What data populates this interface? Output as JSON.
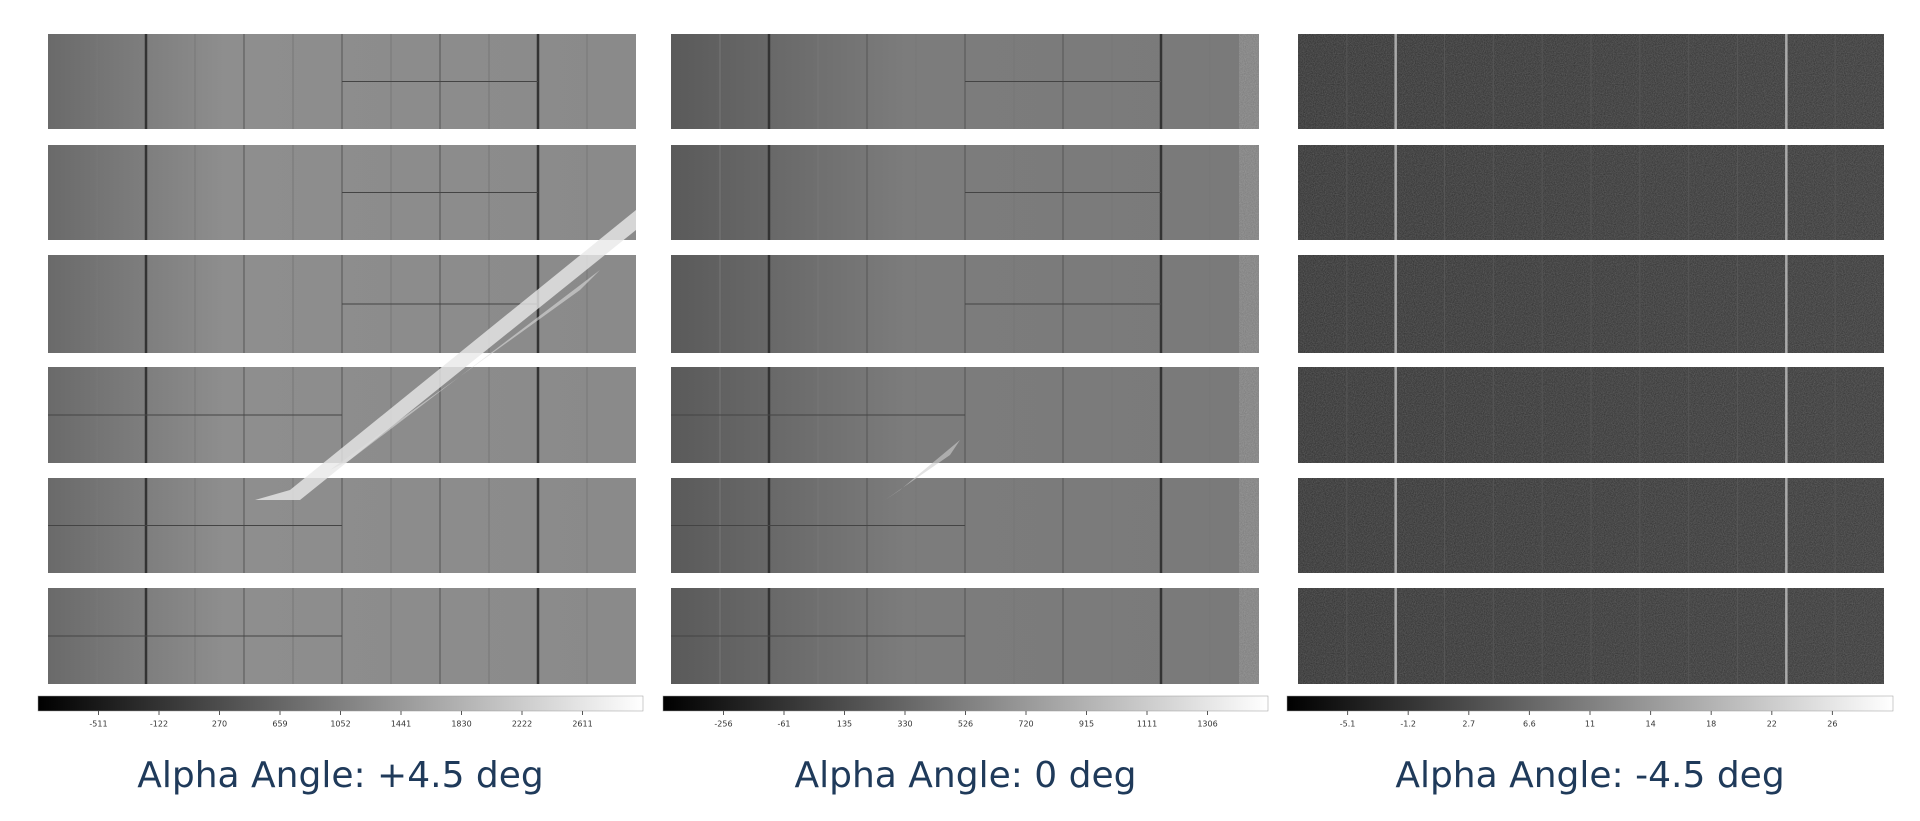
{
  "panels": [
    {
      "caption": "Alpha Angle: +4.5 deg",
      "colorbar_ticks": [
        "-511",
        "-122",
        "270",
        "659",
        "1052",
        "1441",
        "1830",
        "2222",
        "2611"
      ]
    },
    {
      "caption": "Alpha Angle: 0 deg",
      "colorbar_ticks": [
        "-256",
        "-61",
        "135",
        "330",
        "526",
        "720",
        "915",
        "1111",
        "1306"
      ]
    },
    {
      "caption": "Alpha Angle: -4.5 deg",
      "colorbar_ticks": [
        "-5.1",
        "-1.2",
        "2.7",
        "6.6",
        "11",
        "14",
        "18",
        "22",
        "26"
      ]
    }
  ]
}
